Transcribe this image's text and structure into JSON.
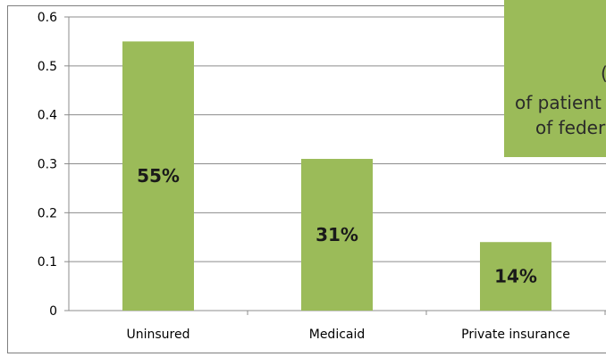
{
  "chart_data": {
    "type": "bar",
    "categories": [
      "Uninsured",
      "Medicaid",
      "Private insurance"
    ],
    "values": [
      0.55,
      0.31,
      0.14
    ],
    "data_labels": [
      "55%",
      "31%",
      "14%"
    ],
    "yticks": [
      "0",
      "0.1",
      "0.2",
      "0.3",
      "0.4",
      "0.5",
      "0.6"
    ],
    "ylim": [
      0,
      0.6
    ],
    "grid": true,
    "bar_color": "#9bbb59",
    "title": "",
    "xlabel": "",
    "ylabel": ""
  },
  "callout": {
    "lines": [
      "(",
      "of patient",
      "of feder"
    ],
    "color": "#9bbb59"
  }
}
